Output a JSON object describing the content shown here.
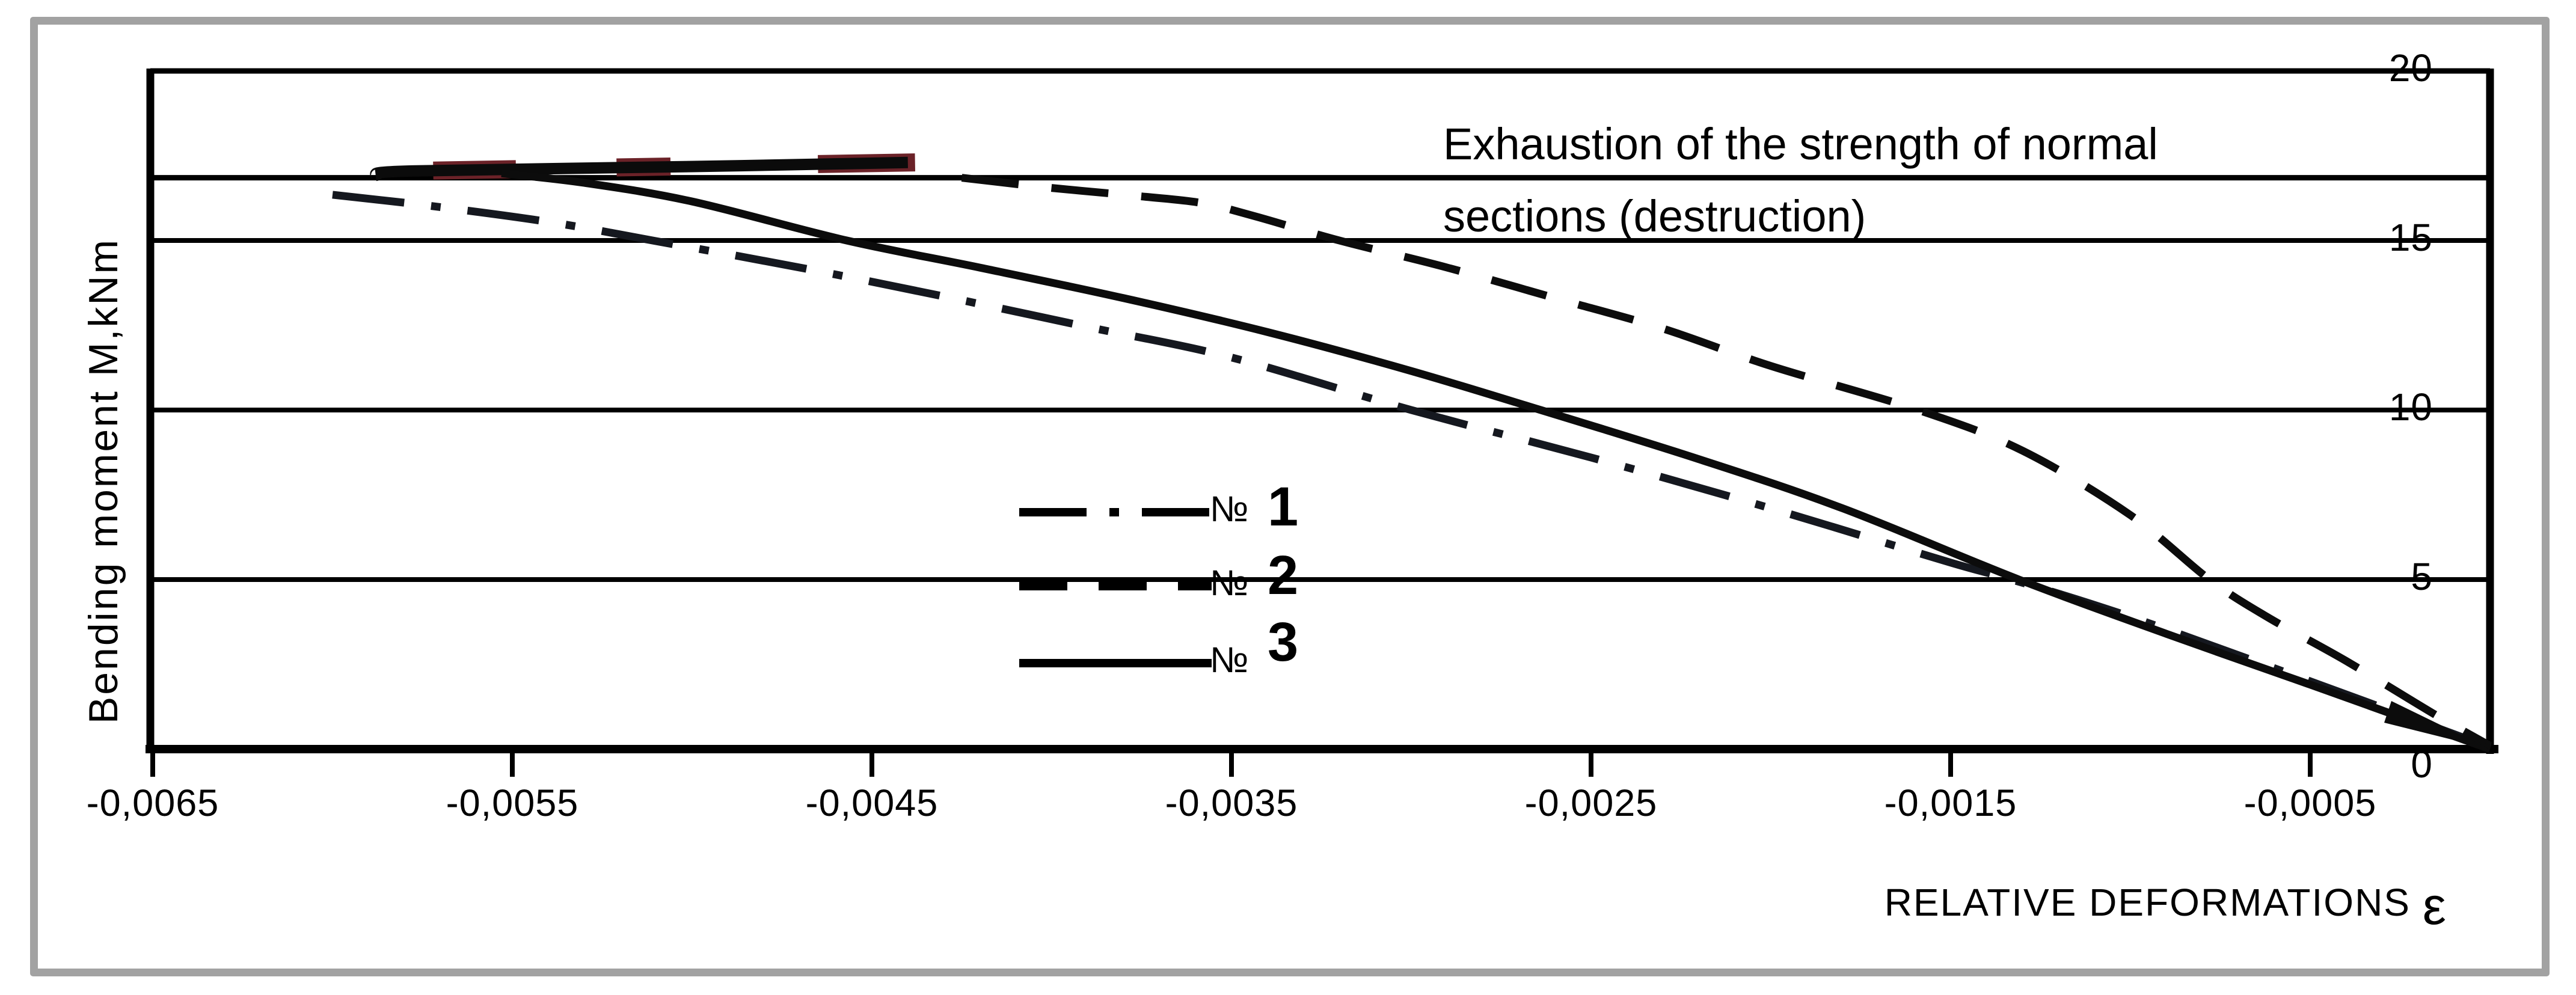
{
  "chart_data": {
    "type": "line",
    "annotation": {
      "line1": "Exhaustion of the strength of normal",
      "line2": "sections (destruction)"
    },
    "xlabel_text": "RELATIVE DEFORMATIONS",
    "xlabel_symbol": "ε",
    "ylabel": "Bending moment M,kNm",
    "xlim": [
      -0.00651,
      0
    ],
    "ylim": [
      0,
      20
    ],
    "grid": "horizontal",
    "legend_position": "center-left",
    "xticks": [
      {
        "label": "-0,0065",
        "value": -0.0065
      },
      {
        "label": "-0,0055",
        "value": -0.0055
      },
      {
        "label": "-0,0045",
        "value": -0.0045
      },
      {
        "label": "-0,0035",
        "value": -0.0035
      },
      {
        "label": "-0,0025",
        "value": -0.0025
      },
      {
        "label": "-0,0015",
        "value": -0.0015
      },
      {
        "label": "-0,0005",
        "value": -0.0005
      }
    ],
    "yticks": [
      {
        "label": "20",
        "value": 20
      },
      {
        "label": "15",
        "value": 15
      },
      {
        "label": "10",
        "value": 10
      },
      {
        "label": "5",
        "value": 5
      },
      {
        "label": "0",
        "value": 0
      }
    ],
    "destruction_level": 16.85,
    "series": [
      {
        "name": "№ 1",
        "style": "dashdot",
        "color": "#15181f",
        "points": [
          [
            -0.006,
            16.35
          ],
          [
            -0.00575,
            16.05
          ],
          [
            -0.0054,
            15.55
          ],
          [
            -0.00511,
            15.0
          ],
          [
            -0.0047,
            14.2
          ],
          [
            -0.0043,
            13.35
          ],
          [
            -0.0039,
            12.45
          ],
          [
            -0.0035,
            11.55
          ],
          [
            -0.003,
            10.0
          ],
          [
            -0.0025,
            8.6
          ],
          [
            -0.002,
            7.1
          ],
          [
            -0.0015,
            5.5
          ],
          [
            -0.00133,
            5.0
          ],
          [
            -0.001,
            3.9
          ],
          [
            -0.0005,
            2.0
          ],
          [
            0,
            0.05
          ]
        ]
      },
      {
        "name": "№ 2",
        "style": "dashed",
        "color": "#0c0c0c",
        "points": [
          [
            -0.00425,
            16.85
          ],
          [
            -0.004,
            16.55
          ],
          [
            -0.00375,
            16.3
          ],
          [
            -0.00358,
            16.1
          ],
          [
            -0.00343,
            15.7
          ],
          [
            -0.0032,
            15.0
          ],
          [
            -0.0029,
            14.2
          ],
          [
            -0.0026,
            13.3
          ],
          [
            -0.0023,
            12.4
          ],
          [
            -0.002,
            11.3
          ],
          [
            -0.00159,
            10.0
          ],
          [
            -0.0013,
            8.8
          ],
          [
            -0.001,
            6.9
          ],
          [
            -0.00078,
            5.0
          ],
          [
            -0.00062,
            3.9
          ],
          [
            -0.0004,
            2.6
          ],
          [
            -0.00015,
            1.0
          ],
          [
            0,
            0.1
          ]
        ]
      },
      {
        "name": "№ 3",
        "style": "solid",
        "color": "#0c0c0c",
        "arrow_end": true,
        "points": [
          [
            -0.00553,
            16.98
          ],
          [
            -0.0053,
            16.7
          ],
          [
            -0.005,
            16.15
          ],
          [
            -0.00457,
            15.0
          ],
          [
            -0.0042,
            14.2
          ],
          [
            -0.0038,
            13.3
          ],
          [
            -0.0034,
            12.3
          ],
          [
            -0.003,
            11.15
          ],
          [
            -0.00264,
            10.0
          ],
          [
            -0.0022,
            8.55
          ],
          [
            -0.0018,
            7.1
          ],
          [
            -0.00131,
            5.0
          ],
          [
            -0.0009,
            3.4
          ],
          [
            -0.0005,
            1.9
          ],
          [
            0,
            0.0
          ]
        ]
      }
    ],
    "plateau": {
      "color": "#0b0b0b",
      "points": [
        [
          -0.00588,
          16.92
        ],
        [
          -0.00578,
          17.05
        ],
        [
          -0.005,
          17.18
        ],
        [
          -0.0044,
          17.3
        ]
      ]
    },
    "red_segments": {
      "color": "#6b2228",
      "ranges": [
        [
          -0.00572,
          -0.00549
        ],
        [
          -0.00521,
          -0.00506
        ],
        [
          -0.00465,
          -0.00438
        ]
      ]
    }
  },
  "legend": {
    "entries": [
      {
        "mark": "№",
        "number": "1",
        "style": "dashdot"
      },
      {
        "mark": "№",
        "number": "2",
        "style": "dashed"
      },
      {
        "mark": "№",
        "number": "3",
        "style": "solid"
      }
    ]
  },
  "colors": {
    "frame": "#a2a2a2",
    "grid": "#000000",
    "destruction_red": "#6b2228",
    "background": "#ffffff"
  }
}
